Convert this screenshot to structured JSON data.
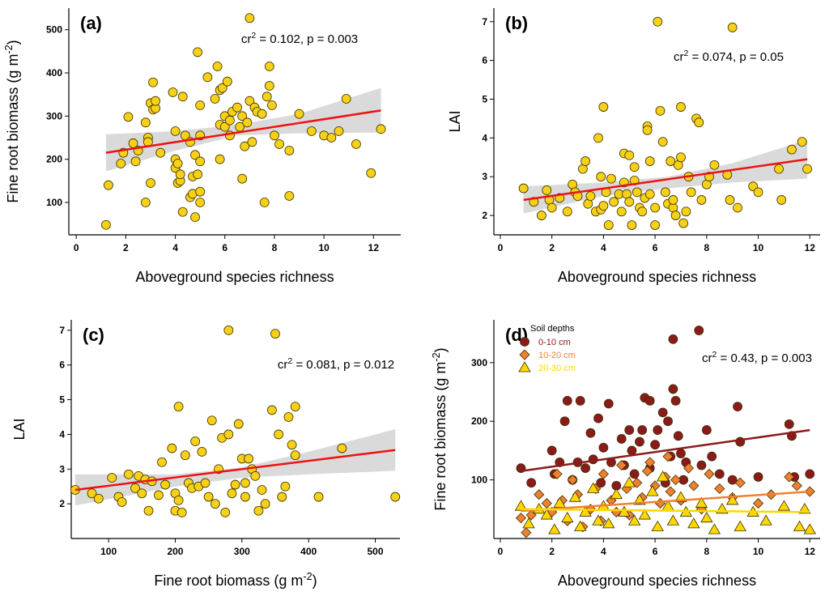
{
  "chart_data": [
    {
      "type": "scatter",
      "panel_label": "(a)",
      "annotation": [
        "cr",
        "2",
        " = 0.102, p = 0.003"
      ],
      "x_title": "Aboveground species richness",
      "y_title": [
        "Fine root biomass (g m",
        "-2",
        ")"
      ],
      "xlim": [
        -0.3,
        13.1
      ],
      "ylim": [
        25,
        550
      ],
      "xticks": [
        0,
        2,
        4,
        6,
        8,
        10,
        12
      ],
      "yticks": [
        100,
        200,
        300,
        400,
        500
      ],
      "color": "#f7d117",
      "x": [
        1.2,
        1.3,
        1.8,
        1.9,
        2.1,
        2.3,
        2.4,
        2.5,
        2.8,
        2.8,
        2.9,
        2.9,
        3.0,
        3.0,
        3.1,
        3.1,
        3.2,
        3.2,
        3.4,
        3.9,
        4.0,
        4.0,
        4.0,
        4.1,
        4.1,
        4.2,
        4.2,
        4.3,
        4.3,
        4.4,
        4.6,
        4.6,
        4.7,
        4.7,
        4.8,
        4.8,
        4.9,
        4.9,
        5.0,
        5.0,
        5.0,
        5.0,
        5.0,
        5.3,
        5.6,
        5.7,
        5.8,
        5.8,
        5.8,
        5.9,
        6.0,
        6.0,
        6.1,
        6.2,
        6.2,
        6.3,
        6.5,
        6.6,
        6.7,
        6.7,
        6.8,
        6.9,
        7.0,
        7.0,
        7.1,
        7.2,
        7.3,
        7.5,
        7.6,
        7.7,
        7.8,
        7.8,
        7.9,
        8.0,
        8.2,
        8.6,
        8.6,
        9.0,
        9.5,
        10.0,
        10.3,
        10.9,
        10.6,
        11.3,
        11.9,
        12.3
      ],
      "values": [
        48,
        140,
        190,
        215,
        298,
        237,
        195,
        220,
        100,
        285,
        250,
        240,
        330,
        145,
        378,
        315,
        318,
        335,
        215,
        355,
        265,
        200,
        180,
        190,
        145,
        150,
        165,
        78,
        345,
        255,
        112,
        240,
        120,
        160,
        66,
        210,
        165,
        448,
        325,
        255,
        125,
        195,
        100,
        390,
        340,
        415,
        280,
        360,
        200,
        365,
        300,
        275,
        380,
        290,
        255,
        310,
        320,
        275,
        155,
        300,
        230,
        285,
        335,
        527,
        240,
        320,
        310,
        305,
        100,
        345,
        415,
        370,
        325,
        255,
        235,
        115,
        220,
        305,
        265,
        255,
        250,
        340,
        265,
        235,
        168,
        270
      ],
      "fit": {
        "x": [
          1.2,
          12.3
        ],
        "values": [
          215,
          313
        ],
        "color": "#ee1111"
      },
      "band": {
        "x": [
          1.2,
          4,
          6.5,
          9,
          12.3
        ],
        "lower": [
          172,
          220,
          255,
          260,
          262
        ],
        "upper": [
          258,
          265,
          280,
          305,
          365
        ],
        "color": "#d3d3d3"
      }
    },
    {
      "type": "scatter",
      "panel_label": "(b)",
      "annotation": [
        "cr",
        "2",
        " = 0.074, p = 0.05"
      ],
      "x_title": "Aboveground species richness",
      "y_title": "LAI",
      "xlim": [
        -0.25,
        12.4
      ],
      "ylim": [
        1.5,
        7.35
      ],
      "xticks": [
        0,
        2,
        4,
        6,
        8,
        10,
        12
      ],
      "yticks": [
        2,
        3,
        4,
        5,
        6,
        7
      ],
      "color": "#f7d117",
      "x": [
        0.9,
        1.3,
        1.6,
        1.8,
        1.9,
        2.0,
        2.3,
        2.6,
        2.8,
        2.9,
        3.0,
        3.2,
        3.3,
        3.4,
        3.5,
        3.7,
        3.8,
        3.9,
        3.9,
        4.0,
        4.0,
        4.1,
        4.2,
        4.3,
        4.4,
        4.6,
        4.7,
        4.8,
        4.8,
        4.9,
        5.0,
        5.0,
        5.1,
        5.2,
        5.2,
        5.3,
        5.4,
        5.5,
        5.6,
        5.7,
        5.7,
        5.8,
        5.8,
        6.0,
        6.0,
        6.1,
        6.2,
        6.3,
        6.4,
        6.5,
        6.6,
        6.7,
        6.7,
        6.8,
        6.9,
        7.0,
        7.0,
        7.1,
        7.2,
        7.3,
        7.4,
        7.6,
        7.7,
        7.8,
        8.0,
        8.1,
        8.3,
        8.8,
        8.9,
        9.0,
        9.2,
        9.8,
        10.0,
        10.8,
        10.9,
        11.3,
        11.7,
        11.9
      ],
      "values": [
        2.7,
        2.35,
        2.0,
        2.65,
        2.4,
        2.2,
        2.45,
        2.1,
        2.8,
        2.6,
        2.5,
        3.2,
        3.4,
        2.3,
        2.5,
        2.1,
        4.0,
        2.15,
        3.0,
        4.8,
        2.25,
        2.6,
        1.75,
        2.95,
        2.35,
        2.55,
        2.1,
        2.85,
        3.6,
        2.55,
        2.35,
        3.55,
        1.75,
        2.9,
        3.25,
        2.6,
        2.2,
        2.1,
        2.45,
        4.3,
        4.2,
        3.4,
        2.55,
        2.2,
        1.75,
        7.0,
        4.7,
        3.9,
        2.6,
        2.3,
        3.4,
        2.2,
        2.4,
        2.0,
        3.3,
        4.8,
        3.5,
        1.8,
        2.1,
        3.0,
        2.6,
        4.5,
        4.4,
        2.4,
        2.8,
        3.0,
        3.3,
        3.05,
        2.4,
        6.85,
        2.2,
        2.75,
        2.6,
        3.2,
        2.4,
        3.7,
        3.9,
        3.2
      ],
      "fit": {
        "x": [
          0.9,
          11.9
        ],
        "values": [
          2.4,
          3.45
        ],
        "color": "#ee1111"
      },
      "band": {
        "x": [
          0.9,
          4,
          6.5,
          9,
          11.9
        ],
        "lower": [
          2.05,
          2.5,
          2.7,
          2.85,
          2.95
        ],
        "upper": [
          2.75,
          2.85,
          3.0,
          3.35,
          3.95
        ],
        "color": "#d3d3d3"
      }
    },
    {
      "type": "scatter",
      "panel_label": "(c)",
      "annotation": [
        "cr",
        "2",
        " = 0.081, p = 0.012"
      ],
      "x_title": [
        "Fine root biomass (g m",
        "-2",
        ")"
      ],
      "y_title": "LAI",
      "xlim": [
        44,
        537
      ],
      "ylim": [
        1.0,
        7.3
      ],
      "xticks": [
        100,
        200,
        300,
        400,
        500
      ],
      "yticks": [
        2,
        3,
        4,
        5,
        6,
        7
      ],
      "color": "#f7d117",
      "x": [
        50,
        75,
        85,
        105,
        115,
        120,
        130,
        140,
        145,
        150,
        155,
        160,
        165,
        175,
        180,
        185,
        195,
        200,
        200,
        205,
        205,
        210,
        215,
        220,
        225,
        230,
        235,
        240,
        245,
        250,
        255,
        260,
        265,
        270,
        275,
        280,
        280,
        285,
        290,
        295,
        300,
        305,
        305,
        310,
        315,
        320,
        325,
        330,
        335,
        345,
        350,
        355,
        360,
        365,
        370,
        375,
        380,
        380,
        415,
        450,
        530
      ],
      "values": [
        2.4,
        2.3,
        2.15,
        2.75,
        2.2,
        2.05,
        2.85,
        2.45,
        2.8,
        2.3,
        2.7,
        1.8,
        2.65,
        2.25,
        3.2,
        2.55,
        3.6,
        2.3,
        1.8,
        4.8,
        2.1,
        1.75,
        3.4,
        2.6,
        2.45,
        3.8,
        2.5,
        3.5,
        2.6,
        2.2,
        4.4,
        2.0,
        3.0,
        3.9,
        1.75,
        7.0,
        4.0,
        2.3,
        2.55,
        4.3,
        3.3,
        2.6,
        2.2,
        3.3,
        3.0,
        2.8,
        1.8,
        2.4,
        2.0,
        4.7,
        6.9,
        4.0,
        2.2,
        2.5,
        4.5,
        3.7,
        4.8,
        3.4,
        2.2,
        3.6,
        2.2
      ],
      "fit": {
        "x": [
          50,
          530
        ],
        "values": [
          2.4,
          3.55
        ],
        "color": "#ee1111"
      },
      "band": {
        "x": [
          50,
          200,
          300,
          400,
          530
        ],
        "lower": [
          1.95,
          2.5,
          2.75,
          2.85,
          2.95
        ],
        "upper": [
          2.85,
          2.85,
          3.05,
          3.5,
          4.15
        ],
        "color": "#d3d3d3"
      }
    },
    {
      "type": "scatter",
      "panel_label": "(d)",
      "annotation": [
        "cr",
        "2",
        " = 0.43, p = 0.003"
      ],
      "x_title": "Aboveground species richness",
      "y_title": [
        "Fine root biomass (g m",
        "-2",
        ")"
      ],
      "xlim": [
        -0.25,
        12.4
      ],
      "ylim": [
        0,
        373
      ],
      "xticks": [
        0,
        2,
        4,
        6,
        8,
        10,
        12
      ],
      "yticks": [
        100,
        200,
        300
      ],
      "legend_title": "Soil depths",
      "legend": "upper left",
      "series": [
        {
          "name": "0-10 cm",
          "color": "#8b1a1a",
          "marker": "circle",
          "x": [
            0.8,
            1.2,
            2.0,
            2.1,
            2.3,
            2.5,
            2.6,
            2.8,
            3.0,
            3.1,
            3.3,
            3.5,
            3.6,
            3.8,
            3.9,
            4.0,
            4.2,
            4.3,
            4.5,
            4.7,
            4.8,
            5.0,
            5.1,
            5.2,
            5.4,
            5.5,
            5.6,
            5.8,
            5.8,
            6.0,
            6.1,
            6.3,
            6.4,
            6.5,
            6.6,
            6.7,
            6.7,
            6.8,
            6.9,
            7.0,
            7.1,
            7.2,
            7.7,
            7.8,
            8.0,
            8.2,
            8.5,
            9.0,
            9.2,
            9.3,
            10.0,
            11.2,
            11.3,
            11.4,
            12.0
          ],
          "values": [
            120,
            95,
            150,
            110,
            130,
            200,
            235,
            100,
            130,
            235,
            120,
            180,
            135,
            205,
            95,
            155,
            230,
            130,
            90,
            170,
            125,
            185,
            150,
            110,
            165,
            185,
            240,
            235,
            120,
            160,
            185,
            215,
            95,
            200,
            140,
            340,
            255,
            235,
            175,
            145,
            100,
            130,
            355,
            125,
            185,
            140,
            110,
            100,
            225,
            165,
            105,
            195,
            175,
            105,
            110
          ],
          "fit": {
            "x": [
              0.8,
              12
            ],
            "values": [
              115,
              185
            ]
          }
        },
        {
          "name": "10-20 cm",
          "color": "#f08030",
          "marker": "diamond",
          "x": [
            0.8,
            1.0,
            1.2,
            1.5,
            1.8,
            2.0,
            2.2,
            2.4,
            2.6,
            2.8,
            3.0,
            3.2,
            3.5,
            3.7,
            3.9,
            4.0,
            4.3,
            4.5,
            4.7,
            4.9,
            5.0,
            5.3,
            5.5,
            5.7,
            5.8,
            6.0,
            6.2,
            6.4,
            6.5,
            6.6,
            6.8,
            7.0,
            7.3,
            7.5,
            7.8,
            8.1,
            8.5,
            9.0,
            9.3,
            10.0,
            10.5,
            11.2,
            11.5,
            12.0
          ],
          "values": [
            35,
            10,
            40,
            75,
            60,
            45,
            110,
            65,
            30,
            100,
            75,
            20,
            50,
            85,
            30,
            110,
            65,
            45,
            125,
            85,
            40,
            95,
            70,
            115,
            130,
            90,
            60,
            105,
            140,
            80,
            100,
            65,
            120,
            90,
            50,
            110,
            85,
            70,
            95,
            60,
            75,
            105,
            90,
            80
          ],
          "fit": {
            "x": [
              0.8,
              12
            ],
            "values": [
              47,
              80
            ]
          }
        },
        {
          "name": "20-30 cm",
          "color": "#ffd700",
          "marker": "triangle",
          "x": [
            0.8,
            1.1,
            1.5,
            1.8,
            2.1,
            2.3,
            2.6,
            2.9,
            3.1,
            3.3,
            3.6,
            3.8,
            4.0,
            4.2,
            4.5,
            4.8,
            5.0,
            5.2,
            5.4,
            5.6,
            5.9,
            6.1,
            6.3,
            6.5,
            6.7,
            7.0,
            7.2,
            7.5,
            7.8,
            8.0,
            8.3,
            8.6,
            9.0,
            9.3,
            9.8,
            10.3,
            11.0,
            11.6,
            11.8,
            12.0
          ],
          "values": [
            55,
            25,
            50,
            40,
            15,
            60,
            35,
            70,
            20,
            45,
            85,
            30,
            55,
            25,
            75,
            45,
            95,
            30,
            65,
            40,
            80,
            20,
            105,
            55,
            30,
            70,
            45,
            25,
            60,
            35,
            15,
            50,
            65,
            20,
            45,
            30,
            55,
            20,
            50,
            15
          ],
          "fit": {
            "x": [
              0.8,
              12
            ],
            "values": [
              50,
              45
            ]
          }
        }
      ]
    }
  ]
}
